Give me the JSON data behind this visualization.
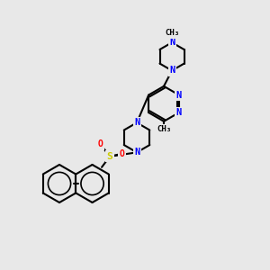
{
  "bg_color": "#e8e8e8",
  "atom_colors": {
    "C": "#000000",
    "N": "#0000ff",
    "S": "#cccc00",
    "O": "#ff0000",
    "H": "#000000"
  },
  "bond_color": "#000000",
  "bond_width": 1.5,
  "aromatic_bond_color": "#000000"
}
